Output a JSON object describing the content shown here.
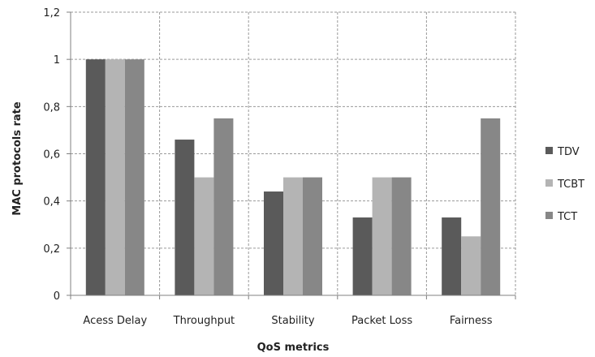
{
  "chart_data": {
    "type": "bar",
    "title": "",
    "xlabel": "QoS metrics",
    "ylabel": "MAC protocols rate",
    "categories": [
      "Acess Delay",
      "Throughput",
      "Stability",
      "Packet Loss",
      "Fairness"
    ],
    "series": [
      {
        "name": "TDV",
        "values": [
          1,
          0.66,
          0.44,
          0.33,
          0.33
        ],
        "color": "#5a5a5a"
      },
      {
        "name": "TCBT",
        "values": [
          1,
          0.5,
          0.5,
          0.5,
          0.25
        ],
        "color": "#b4b4b4"
      },
      {
        "name": "TCT",
        "values": [
          1,
          0.75,
          0.5,
          0.5,
          0.75
        ],
        "color": "#878787"
      }
    ],
    "ylim": [
      0,
      1.2
    ],
    "yticks": [
      0,
      0.2,
      0.4,
      0.6,
      0.8,
      1,
      1.2
    ],
    "ytick_labels": [
      "0",
      "0,2",
      "0,4",
      "0,6",
      "0,8",
      "1",
      "1,2"
    ],
    "grid": true,
    "grid_style": "dashed",
    "legend_position": "right"
  }
}
